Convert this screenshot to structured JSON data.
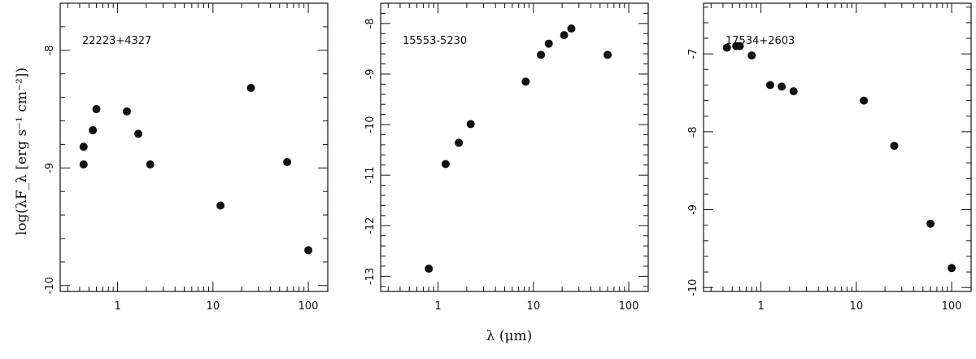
{
  "figure": {
    "xlabel": "λ (μm)",
    "ylabel": "log(λF_λ [erg s⁻¹ cm⁻²])"
  },
  "chart_data": [
    {
      "type": "scatter",
      "title": "22223+4327",
      "x_scale": "log",
      "xlim": [
        0.25,
        160
      ],
      "ylim": [
        -10.05,
        -7.6
      ],
      "x_ticks": [
        1,
        10,
        100
      ],
      "y_ticks": [
        -10,
        -9,
        -8
      ],
      "points": [
        {
          "x": 0.44,
          "y": -8.82
        },
        {
          "x": 0.44,
          "y": -8.97
        },
        {
          "x": 0.55,
          "y": -8.68
        },
        {
          "x": 0.6,
          "y": -8.5
        },
        {
          "x": 1.25,
          "y": -8.52
        },
        {
          "x": 1.65,
          "y": -8.71
        },
        {
          "x": 2.2,
          "y": -8.97
        },
        {
          "x": 12,
          "y": -9.32
        },
        {
          "x": 25,
          "y": -8.32
        },
        {
          "x": 60,
          "y": -8.95
        },
        {
          "x": 100,
          "y": -9.7
        }
      ]
    },
    {
      "type": "scatter",
      "title": "15553-5230",
      "x_scale": "log",
      "xlim": [
        0.25,
        160
      ],
      "ylim": [
        -13.3,
        -7.6
      ],
      "x_ticks": [
        1,
        10,
        100
      ],
      "y_ticks": [
        -13,
        -12,
        -11,
        -10,
        -9,
        -8
      ],
      "points": [
        {
          "x": 0.8,
          "y": -12.85
        },
        {
          "x": 1.2,
          "y": -10.78
        },
        {
          "x": 1.65,
          "y": -10.36
        },
        {
          "x": 2.2,
          "y": -9.99
        },
        {
          "x": 8.3,
          "y": -9.15
        },
        {
          "x": 12,
          "y": -8.62
        },
        {
          "x": 14.5,
          "y": -8.4
        },
        {
          "x": 21,
          "y": -8.23
        },
        {
          "x": 25,
          "y": -8.1
        },
        {
          "x": 60,
          "y": -8.62
        }
      ]
    },
    {
      "type": "scatter",
      "title": "17534+2603",
      "x_scale": "log",
      "xlim": [
        0.25,
        160
      ],
      "ylim": [
        -10.05,
        -6.35
      ],
      "x_ticks": [
        1,
        10,
        100
      ],
      "y_ticks": [
        -10,
        -9,
        -8,
        -7
      ],
      "points": [
        {
          "x": 0.44,
          "y": -6.92
        },
        {
          "x": 0.55,
          "y": -6.9
        },
        {
          "x": 0.6,
          "y": -6.9
        },
        {
          "x": 0.8,
          "y": -7.02
        },
        {
          "x": 1.25,
          "y": -7.4
        },
        {
          "x": 1.65,
          "y": -7.42
        },
        {
          "x": 2.2,
          "y": -7.48
        },
        {
          "x": 12,
          "y": -7.6
        },
        {
          "x": 25,
          "y": -8.18
        },
        {
          "x": 60,
          "y": -9.18
        },
        {
          "x": 100,
          "y": -9.75
        }
      ]
    }
  ]
}
